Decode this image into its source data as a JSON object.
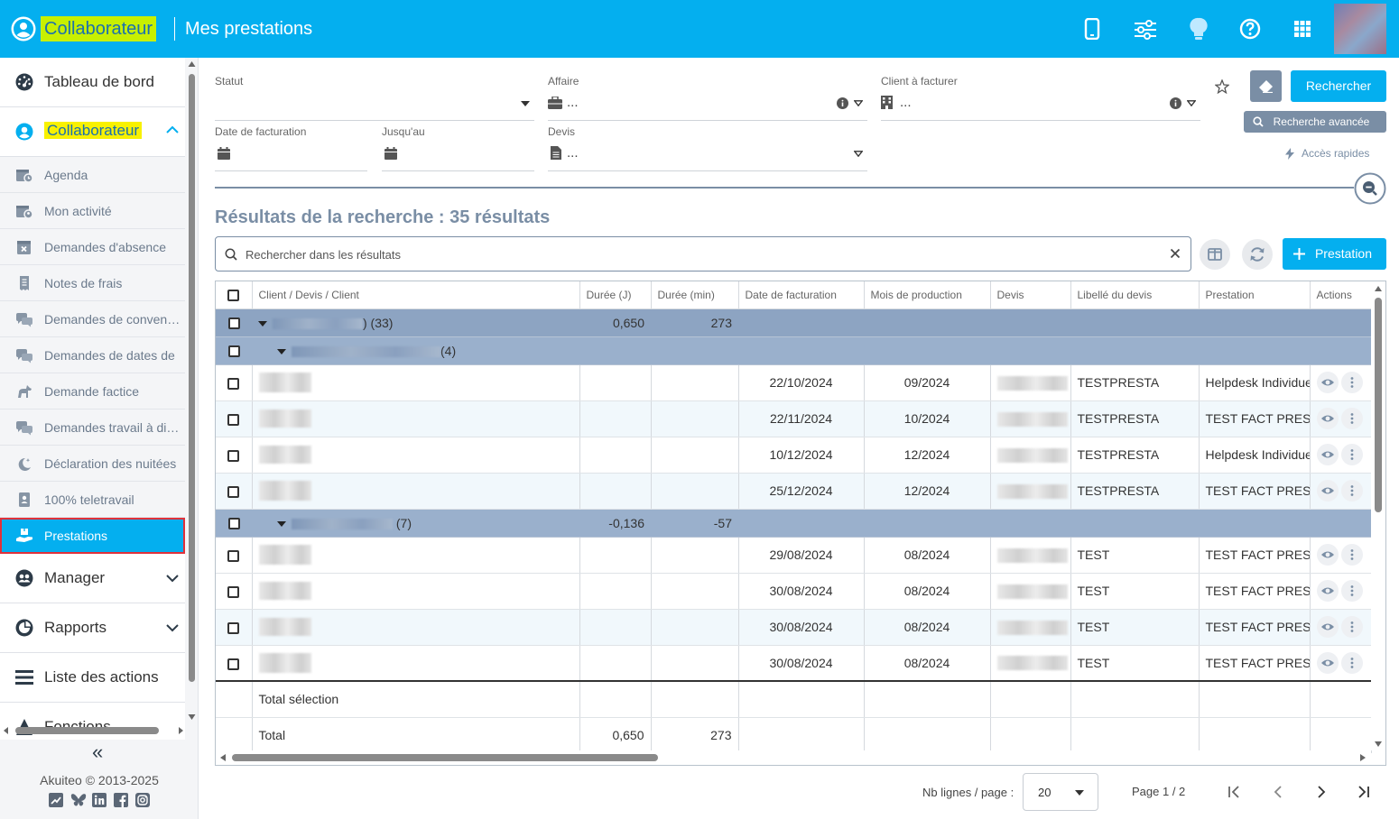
{
  "header": {
    "app_name": "Collaborateur",
    "page_title": "Mes prestations",
    "icons": [
      "user-circle-icon",
      "mobile-icon",
      "sliders-icon",
      "lightbulb-icon",
      "help-icon",
      "apps-grid-icon"
    ]
  },
  "sidebar": {
    "top_items": [
      {
        "label": "Tableau de bord",
        "icon": "dashboard-icon"
      },
      {
        "label": "Collaborateur",
        "icon": "user-circle-icon"
      }
    ],
    "sub_items": [
      {
        "label": "Agenda",
        "icon": "calendar-clock-icon"
      },
      {
        "label": "Mon activité",
        "icon": "calendar-user-icon"
      },
      {
        "label": "Demandes d'absence",
        "icon": "calendar-x-icon"
      },
      {
        "label": "Notes de frais",
        "icon": "receipt-icon"
      },
      {
        "label": "Demandes de convention",
        "icon": "chat-icon"
      },
      {
        "label": "Demandes de dates de",
        "icon": "chat-icon"
      },
      {
        "label": "Demande factice",
        "icon": "horse-icon"
      },
      {
        "label": "Demandes travail à distance",
        "icon": "chat-icon"
      },
      {
        "label": "Déclaration des nuitées",
        "icon": "moon-icon"
      },
      {
        "label": "100% teletravail",
        "icon": "id-card-icon"
      },
      {
        "label": "Prestations",
        "icon": "hand-box-icon"
      }
    ],
    "bottom_items": [
      {
        "label": "Manager",
        "icon": "users-icon"
      },
      {
        "label": "Rapports",
        "icon": "chart-pie-icon"
      },
      {
        "label": "Liste des actions",
        "icon": "list-icon"
      },
      {
        "label": "Fonctions",
        "icon": "fonction-icon"
      }
    ],
    "collapse_label": "«",
    "copyright": "Akuiteo © 2013-2025",
    "social": [
      "analytics-icon",
      "bluesky-icon",
      "linkedin-icon",
      "facebook-icon",
      "instagram-icon"
    ]
  },
  "filters": {
    "statut_label": "Statut",
    "affaire_label": "Affaire",
    "affaire_value": "...",
    "client_label": "Client à facturer",
    "client_value": "...",
    "date_facturation_label": "Date de facturation",
    "jusquau_label": "Jusqu'au",
    "devis_label": "Devis",
    "devis_value": "...",
    "search_button": "Rechercher",
    "advanced_search": "Recherche avancée",
    "quick_access": "Accès rapides"
  },
  "results": {
    "title": "Résultats de la recherche : 35 résultats",
    "search_placeholder": "Rechercher dans les résultats",
    "add_button": "Prestation",
    "columns": [
      "Client / Devis / Client",
      "Durée (J)",
      "Durée (min)",
      "Date de facturation",
      "Mois de production",
      "Devis",
      "Libellé du devis",
      "Prestation",
      "Actions"
    ],
    "groups": [
      {
        "count": ") (33)",
        "duree_j": "0,650",
        "duree_min": "273"
      },
      {
        "count": "(4)"
      },
      {
        "count": "(7)",
        "duree_j": "-0,136",
        "duree_min": "-57"
      }
    ],
    "rows": [
      {
        "date": "22/10/2024",
        "mois": "09/2024",
        "libelle": "TESTPRESTA",
        "prestation": "Helpdesk Individuel"
      },
      {
        "date": "22/11/2024",
        "mois": "10/2024",
        "libelle": "TESTPRESTA",
        "prestation": "TEST FACT PRESTA"
      },
      {
        "date": "10/12/2024",
        "mois": "12/2024",
        "libelle": "TESTPRESTA",
        "prestation": "Helpdesk Individuel"
      },
      {
        "date": "25/12/2024",
        "mois": "12/2024",
        "libelle": "TESTPRESTA",
        "prestation": "TEST FACT PRESTA"
      },
      {
        "date": "29/08/2024",
        "mois": "08/2024",
        "libelle": "TEST",
        "prestation": "TEST FACT PRESTA"
      },
      {
        "date": "30/08/2024",
        "mois": "08/2024",
        "libelle": "TEST",
        "prestation": "TEST FACT PRESTA"
      },
      {
        "date": "30/08/2024",
        "mois": "08/2024",
        "libelle": "TEST",
        "prestation": "TEST FACT PRESTA"
      },
      {
        "date": "30/08/2024",
        "mois": "08/2024",
        "libelle": "TEST",
        "prestation": "TEST FACT PRESTA"
      }
    ],
    "total_selection_label": "Total sélection",
    "total_label": "Total",
    "total_duree_j": "0,650",
    "total_duree_min": "273"
  },
  "pagination": {
    "rows_per_page_label": "Nb lignes / page :",
    "rows_per_page_value": "20",
    "page_info": "Page 1 / 2"
  },
  "colors": {
    "primary": "#04afef",
    "group_row": "#8da4c2",
    "highlight": "#f8f100",
    "active_outline": "#e0313a",
    "title": "#7a8ea5"
  }
}
